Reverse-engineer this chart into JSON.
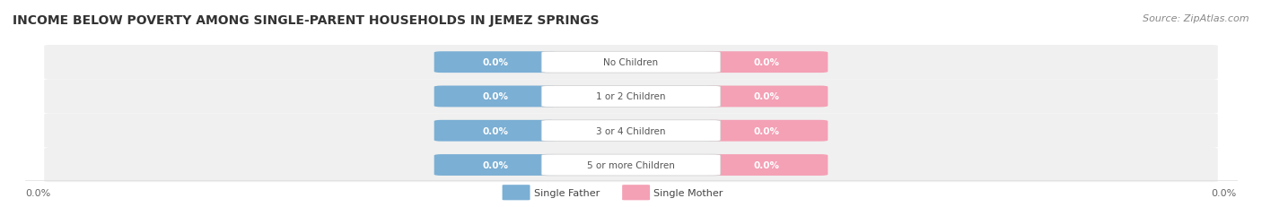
{
  "title": "INCOME BELOW POVERTY AMONG SINGLE-PARENT HOUSEHOLDS IN JEMEZ SPRINGS",
  "source": "Source: ZipAtlas.com",
  "categories": [
    "No Children",
    "1 or 2 Children",
    "3 or 4 Children",
    "5 or more Children"
  ],
  "father_values": [
    0.0,
    0.0,
    0.0,
    0.0
  ],
  "mother_values": [
    0.0,
    0.0,
    0.0,
    0.0
  ],
  "father_color": "#7bafd4",
  "mother_color": "#f4a0b5",
  "title_fontsize": 10,
  "source_fontsize": 8,
  "legend_father": "Single Father",
  "legend_mother": "Single Mother",
  "axis_label_left": "0.0%",
  "axis_label_right": "0.0%",
  "background_color": "#ffffff",
  "label_color": "#ffffff",
  "category_color": "#555555"
}
